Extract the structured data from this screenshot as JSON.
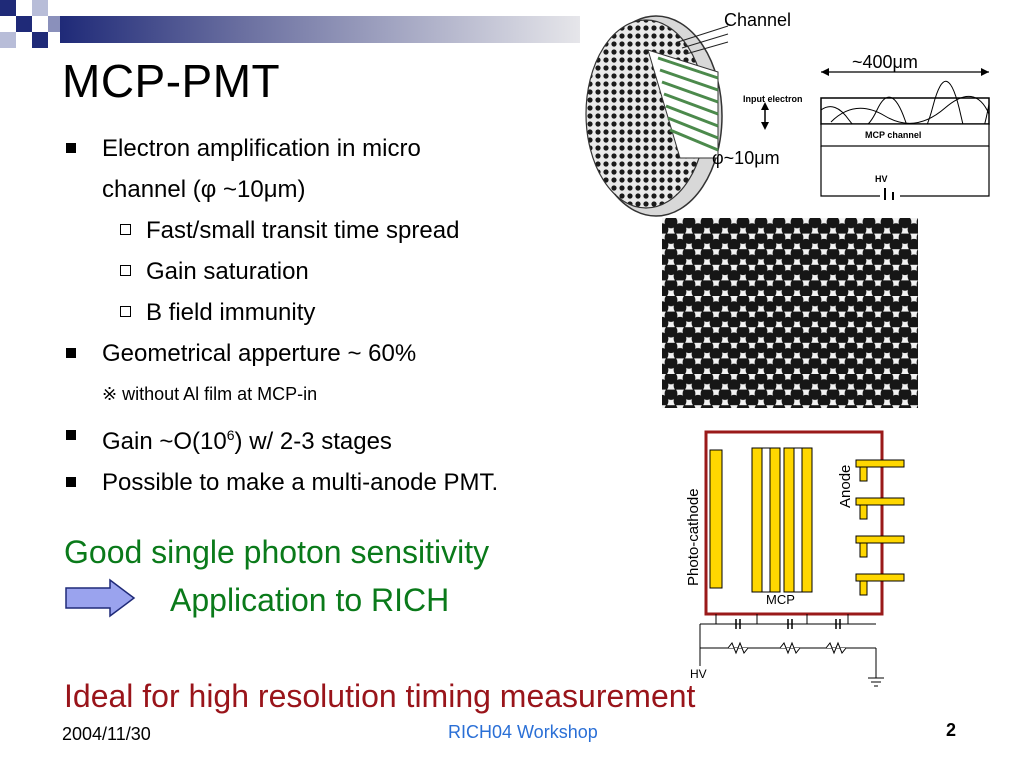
{
  "title": "MCP-PMT",
  "bullets": {
    "b1_line1": "Electron amplification in micro",
    "b1_line2_pre": "channel (",
    "phi": "φ",
    "b1_line2_mid": " ~10",
    "mu": "μ",
    "b1_line2_post": "m)",
    "sub1": "Fast/small transit time spread",
    "sub2": "Gain saturation",
    "sub3": "B field immunity",
    "b2": "Geometrical apperture ~ 60%",
    "note": "※ without Al film at MCP-in",
    "b3_pre": "Gain ~O(10",
    "b3_sup": "6",
    "b3_post": ") w/ 2-3 stages",
    "b4": "Possible to make a multi-anode PMT."
  },
  "conclusions": {
    "good": "Good single photon sensitivity",
    "application": "Application to RICH",
    "ideal": "Ideal for high resolution timing measurement"
  },
  "figure_labels": {
    "channel": "Channel",
    "width_pre": "~400",
    "width_mu": "μ",
    "width_post": "m",
    "dia_phi": "φ",
    "dia_mid": "~10",
    "dia_mu": "μ",
    "dia_post": "m",
    "input_electron": "Input electron",
    "mcp_channel": "MCP channel",
    "hv": "HV",
    "photocathode": "Photo-cathode",
    "anode": "Anode",
    "mcp": "MCP",
    "hv_bottom": "HV"
  },
  "footer": {
    "date": "2004/11/30",
    "event": "RICH04 Workshop",
    "page": "2"
  },
  "colors": {
    "accent_navy": "#1f2a78",
    "green": "#0a7a1a",
    "red": "#99141a",
    "footer_blue": "#2a6fd6",
    "arrow_fill": "#9aa3ee"
  }
}
